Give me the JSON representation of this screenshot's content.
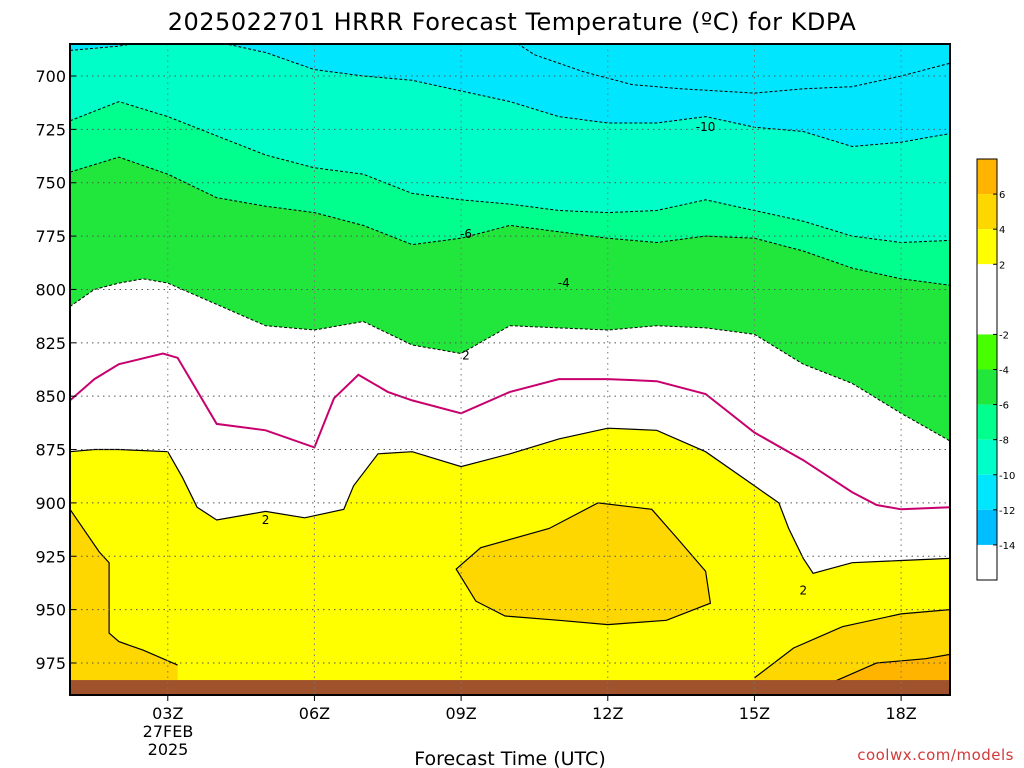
{
  "chart_data": {
    "type": "heatmap",
    "title": "2025022701 HRRR Forecast Temperature (ºC) for KDPA",
    "xlabel": "Forecast Time (UTC)",
    "ylabel": "",
    "x_ticks": [
      "03Z",
      "06Z",
      "09Z",
      "12Z",
      "15Z",
      "18Z"
    ],
    "x_tick_hours": [
      3,
      6,
      9,
      12,
      15,
      18
    ],
    "x_range_hours": [
      1,
      19
    ],
    "date_label": [
      "27FEB",
      "2025"
    ],
    "y_ticks": [
      700,
      725,
      750,
      775,
      800,
      825,
      850,
      875,
      900,
      925,
      950,
      975
    ],
    "y_range_hpa": [
      685,
      990
    ],
    "y_inverted": true,
    "grid": true,
    "colorbar_levels": [
      6,
      4,
      2,
      -2,
      -4,
      -6,
      -8,
      -10,
      -12,
      -14
    ],
    "colorbar_colors": [
      "#ffb400",
      "#ffd700",
      "#ffff00",
      "#ffffff",
      "#48ff00",
      "#21e63c",
      "#00ff8c",
      "#00ffc8",
      "#00e6ff",
      "#00beff"
    ],
    "colorbar_range": [
      -16,
      8
    ],
    "contour_labels": [
      {
        "text": "-10",
        "hour": 14.0,
        "hpa": 724
      },
      {
        "text": "-6",
        "hour": 9.1,
        "hpa": 774
      },
      {
        "text": "-4",
        "hour": 11.1,
        "hpa": 797
      },
      {
        "text": "2",
        "hour": 9.1,
        "hpa": 831
      },
      {
        "text": "2",
        "hour": 5.0,
        "hpa": 908
      },
      {
        "text": "2",
        "hour": 16.0,
        "hpa": 941
      }
    ],
    "fields": [
      {
        "name": "cold -12",
        "color": "#00e6ff",
        "line": "dash",
        "points": [
          [
            9.9,
            681
          ],
          [
            10.5,
            690
          ],
          [
            11.5,
            698
          ],
          [
            12.5,
            704
          ],
          [
            13.5,
            706
          ],
          [
            15,
            708
          ],
          [
            16,
            706
          ],
          [
            17,
            705
          ],
          [
            18,
            700
          ],
          [
            19,
            694
          ]
        ]
      },
      {
        "name": "-10",
        "color": "#00ffc8",
        "line": "dash",
        "points": [
          [
            1,
            688
          ],
          [
            2,
            686
          ],
          [
            3,
            682
          ],
          [
            4,
            684
          ],
          [
            5,
            689
          ],
          [
            6,
            697
          ],
          [
            7,
            700
          ],
          [
            8,
            702
          ],
          [
            9,
            707
          ],
          [
            10,
            712
          ],
          [
            11,
            719
          ],
          [
            12,
            722
          ],
          [
            13,
            722
          ],
          [
            14,
            719
          ],
          [
            15,
            724
          ],
          [
            16,
            726
          ],
          [
            17,
            733
          ],
          [
            18,
            731
          ],
          [
            19,
            727
          ]
        ]
      },
      {
        "name": "-8",
        "color": "#00ff8c",
        "line": "dash",
        "points": [
          [
            1,
            721
          ],
          [
            2,
            712
          ],
          [
            3,
            719
          ],
          [
            4,
            728
          ],
          [
            5,
            737
          ],
          [
            6,
            743
          ],
          [
            7,
            746
          ],
          [
            8,
            755
          ],
          [
            9,
            758
          ],
          [
            10,
            760
          ],
          [
            11,
            763
          ],
          [
            12,
            764
          ],
          [
            13,
            763
          ],
          [
            14,
            758
          ],
          [
            15,
            763
          ],
          [
            16,
            768
          ],
          [
            17,
            775
          ],
          [
            18,
            778
          ],
          [
            19,
            777
          ]
        ]
      },
      {
        "name": "-6",
        "color": "#21e63c",
        "line": "dash",
        "points": [
          [
            1,
            745
          ],
          [
            2,
            738
          ],
          [
            3,
            746
          ],
          [
            4,
            757
          ],
          [
            5,
            761
          ],
          [
            6,
            764
          ],
          [
            7,
            770
          ],
          [
            8,
            779
          ],
          [
            9,
            776
          ],
          [
            10,
            770
          ],
          [
            11,
            773
          ],
          [
            12,
            776
          ],
          [
            13,
            778
          ],
          [
            14,
            775
          ],
          [
            15,
            776
          ],
          [
            16,
            782
          ],
          [
            17,
            790
          ],
          [
            18,
            795
          ],
          [
            19,
            798
          ]
        ]
      },
      {
        "name": "-4",
        "color": "#48ff00",
        "line": "dash",
        "points": [
          [
            1,
            808
          ],
          [
            1.5,
            800
          ],
          [
            2,
            797
          ],
          [
            2.5,
            795
          ],
          [
            3,
            797
          ],
          [
            4,
            807
          ],
          [
            5,
            817
          ],
          [
            6,
            819
          ],
          [
            7,
            815
          ],
          [
            8,
            826
          ],
          [
            9,
            830
          ],
          [
            10,
            817
          ],
          [
            11,
            818
          ],
          [
            12,
            819
          ],
          [
            13,
            817
          ],
          [
            14,
            818
          ],
          [
            15,
            821
          ],
          [
            16,
            835
          ],
          [
            17,
            844
          ],
          [
            18,
            858
          ],
          [
            19,
            871
          ]
        ]
      },
      {
        "name": "-2",
        "color": "#ffffff",
        "line": "dash",
        "points": [
          [
            1,
            808
          ],
          [
            1.5,
            800
          ],
          [
            2,
            797
          ],
          [
            2.5,
            795
          ],
          [
            3,
            797
          ],
          [
            4,
            807
          ],
          [
            5,
            817
          ],
          [
            6,
            819
          ],
          [
            7,
            815
          ],
          [
            8,
            826
          ],
          [
            9,
            830
          ],
          [
            10,
            817
          ],
          [
            11,
            818
          ],
          [
            12,
            819
          ],
          [
            13,
            817
          ],
          [
            14,
            818
          ],
          [
            15,
            821
          ],
          [
            16,
            835
          ],
          [
            17,
            844
          ],
          [
            18,
            858
          ],
          [
            19,
            871
          ]
        ]
      },
      {
        "name": "2",
        "color": "#ffff00",
        "line": "solid",
        "points": [
          [
            1,
            876
          ],
          [
            1.5,
            875
          ],
          [
            2,
            875
          ],
          [
            3,
            876
          ],
          [
            3.3,
            888
          ],
          [
            3.6,
            902
          ],
          [
            4,
            908
          ],
          [
            5,
            904
          ],
          [
            5.8,
            907
          ],
          [
            6.6,
            903
          ],
          [
            6.8,
            892
          ],
          [
            7.3,
            877
          ],
          [
            8,
            876
          ],
          [
            9,
            883
          ],
          [
            10,
            877
          ],
          [
            11,
            870
          ],
          [
            12,
            865
          ],
          [
            13,
            866
          ],
          [
            14,
            876
          ],
          [
            15,
            892
          ],
          [
            15.5,
            900
          ],
          [
            15.7,
            912
          ],
          [
            16,
            926
          ],
          [
            16.2,
            933
          ],
          [
            17,
            928
          ],
          [
            18,
            927
          ],
          [
            19,
            926
          ]
        ]
      },
      {
        "name": "4",
        "color": "#ffd700",
        "line": "solid",
        "points": [
          [
            1,
            903
          ],
          [
            1.6,
            923
          ],
          [
            1.8,
            928
          ],
          [
            1.8,
            961
          ],
          [
            2.0,
            965
          ],
          [
            2.5,
            969
          ],
          [
            3.2,
            976
          ],
          [
            3.2,
            995
          ],
          [
            1,
            995
          ]
        ]
      },
      {
        "name": "4 center",
        "color": "#ffd700",
        "line": "solid",
        "closed": true,
        "points": [
          [
            8.9,
            931
          ],
          [
            9.4,
            921
          ],
          [
            10.8,
            912
          ],
          [
            11.8,
            900
          ],
          [
            12.9,
            903
          ],
          [
            13.4,
            916
          ],
          [
            14.0,
            932
          ],
          [
            14.1,
            947
          ],
          [
            13.2,
            955
          ],
          [
            12.0,
            957
          ],
          [
            11.0,
            955
          ],
          [
            9.9,
            953
          ],
          [
            9.3,
            946
          ]
        ]
      },
      {
        "name": "4 right",
        "color": "#ffd700",
        "line": "solid",
        "points": [
          [
            15,
            982
          ],
          [
            15.8,
            968
          ],
          [
            16.8,
            958
          ],
          [
            18,
            952
          ],
          [
            19,
            950
          ],
          [
            19,
            995
          ],
          [
            15,
            995
          ]
        ]
      },
      {
        "name": "6 right",
        "color": "#ffb400",
        "line": "solid",
        "points": [
          [
            16.5,
            985
          ],
          [
            17.5,
            975
          ],
          [
            18.5,
            973
          ],
          [
            19,
            971
          ],
          [
            19,
            995
          ],
          [
            16.5,
            995
          ]
        ]
      },
      {
        "name": "0 line",
        "color": "#c8006e",
        "line": "solid",
        "points": [
          [
            1,
            852
          ],
          [
            1.5,
            842
          ],
          [
            2,
            835
          ],
          [
            2.9,
            830
          ],
          [
            3.2,
            832
          ],
          [
            4,
            863
          ],
          [
            5,
            866
          ],
          [
            6,
            874
          ],
          [
            6.4,
            851
          ],
          [
            6.9,
            840
          ],
          [
            7.5,
            848
          ],
          [
            8,
            852
          ],
          [
            9,
            858
          ],
          [
            10,
            848
          ],
          [
            11,
            842
          ],
          [
            12,
            842
          ],
          [
            13,
            843
          ],
          [
            14,
            849
          ],
          [
            15,
            867
          ],
          [
            16,
            880
          ],
          [
            17,
            895
          ],
          [
            17.5,
            901
          ],
          [
            18,
            903
          ],
          [
            19,
            902
          ]
        ]
      }
    ],
    "ground": {
      "color": "#a0522d",
      "top_hpa": 983
    }
  },
  "credit": "coolwx.com/models"
}
